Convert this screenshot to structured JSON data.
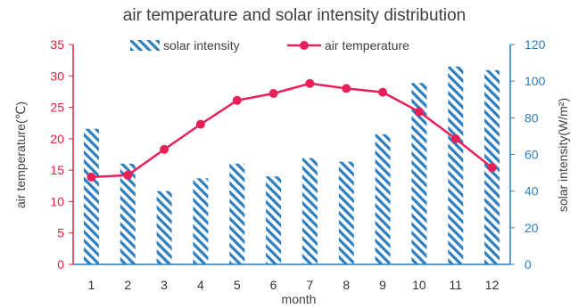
{
  "chart_data": {
    "type": "bar+line",
    "title": "air temperature and solar intensity distribution",
    "xlabel": "month",
    "categories": [
      "1",
      "2",
      "3",
      "4",
      "5",
      "6",
      "7",
      "8",
      "9",
      "10",
      "11",
      "12"
    ],
    "series": [
      {
        "name": "solar intensity",
        "type": "bar",
        "axis": "right",
        "values": [
          74,
          55,
          40,
          47,
          55,
          48,
          58,
          56,
          71,
          99,
          108,
          106
        ],
        "color": "#2b7fc1"
      },
      {
        "name": "air temperature",
        "type": "line",
        "axis": "left",
        "values": [
          13.9,
          14.2,
          18.3,
          22.3,
          26.1,
          27.2,
          28.8,
          28.0,
          27.4,
          24.3,
          20.0,
          15.4
        ],
        "color": "#e8205a"
      }
    ],
    "ylabel_left": "air temperature(℃)",
    "ylabel_right": "solar intensity(W/m²)",
    "ylim_left": [
      0,
      35
    ],
    "yticks_left": [
      "0",
      "5",
      "10",
      "15",
      "20",
      "25",
      "30",
      "35"
    ],
    "ylim_right": [
      0,
      120
    ],
    "yticks_right": [
      "0",
      "20",
      "40",
      "60",
      "80",
      "100",
      "120"
    ],
    "legend_position": "top-center",
    "grid": false,
    "colors": {
      "left_axis": "#e8203c",
      "right_axis": "#2b7fc1",
      "line": "#e8205a",
      "bars": "#2b7fc1"
    }
  }
}
